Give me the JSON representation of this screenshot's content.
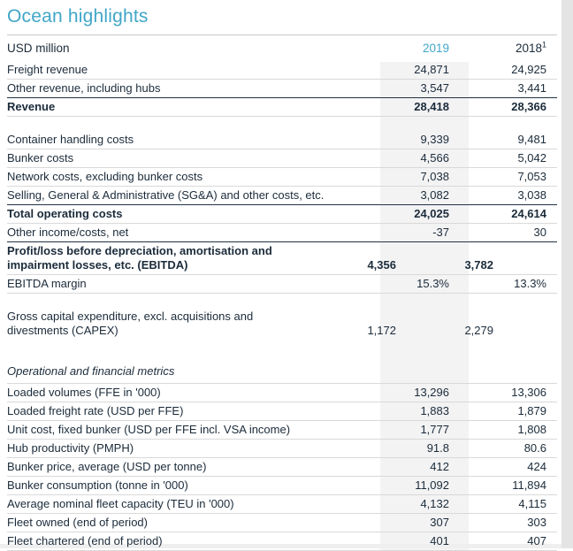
{
  "page": {
    "title": "Ocean highlights"
  },
  "colors": {
    "accent": "#41a6c8",
    "text": "#1b2b3a",
    "border_light": "#d9d9d9",
    "border_dark": "#223244",
    "column_band": "#f3f3f4"
  },
  "table": {
    "unit_label": "USD million",
    "columns": [
      {
        "label": "2019"
      },
      {
        "label": "2018",
        "footnote": "1"
      }
    ],
    "rows": [
      {
        "label": "Freight revenue",
        "v2019": "24,871",
        "v2018": "24,925"
      },
      {
        "label": "Other revenue, including hubs",
        "v2019": "3,547",
        "v2018": "3,441"
      },
      {
        "label": "Revenue",
        "v2019": "28,418",
        "v2018": "28,366"
      },
      {
        "label": "Container handling costs",
        "v2019": "9,339",
        "v2018": "9,481"
      },
      {
        "label": "Bunker costs",
        "v2019": "4,566",
        "v2018": "5,042"
      },
      {
        "label": "Network costs, excluding bunker costs",
        "v2019": "7,038",
        "v2018": "7,053"
      },
      {
        "label": "Selling, General & Administrative (SG&A) and other costs, etc.",
        "v2019": "3,082",
        "v2018": "3,038"
      },
      {
        "label": "Total operating costs",
        "v2019": "24,025",
        "v2018": "24,614"
      },
      {
        "label": "Other income/costs, net",
        "v2019": "-37",
        "v2018": "30"
      },
      {
        "label": "Profit/loss before depreciation, amortisation and impairment losses, etc. (EBITDA)",
        "v2019": "4,356",
        "v2018": "3,782"
      },
      {
        "label": "EBITDA margin",
        "v2019": "15.3%",
        "v2018": "13.3%"
      },
      {
        "label": "Gross capital expenditure, excl. acquisitions and divestments (CAPEX)",
        "v2019": "1,172",
        "v2018": "2,279"
      },
      {
        "label": "Operational and financial metrics"
      },
      {
        "label": "Loaded volumes (FFE in '000)",
        "v2019": "13,296",
        "v2018": "13,306"
      },
      {
        "label": "Loaded freight rate (USD per FFE)",
        "v2019": "1,883",
        "v2018": "1,879"
      },
      {
        "label": "Unit cost, fixed bunker (USD per FFE incl. VSA income)",
        "v2019": "1,777",
        "v2018": "1,808"
      },
      {
        "label": "Hub productivity (PMPH)",
        "v2019": "91.8",
        "v2018": "80.6"
      },
      {
        "label": "Bunker price, average (USD per tonne)",
        "v2019": "412",
        "v2018": "424"
      },
      {
        "label": "Bunker consumption (tonne in '000)",
        "v2019": "11,092",
        "v2018": "11,894"
      },
      {
        "label": "Average nominal fleet capacity (TEU in '000)",
        "v2019": "4,132",
        "v2018": "4,115"
      },
      {
        "label": "Fleet owned (end of period)",
        "v2019": "307",
        "v2018": "303"
      },
      {
        "label": "Fleet chartered (end of period)",
        "v2019": "401",
        "v2018": "407"
      }
    ]
  }
}
